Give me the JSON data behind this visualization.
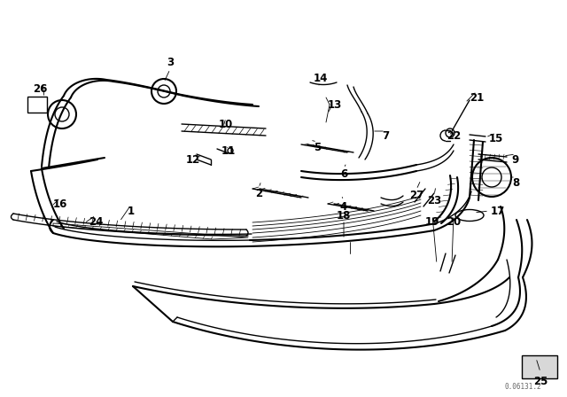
{
  "bg_color": "#ffffff",
  "line_color": "#000000",
  "fig_width": 6.4,
  "fig_height": 4.48,
  "dpi": 100,
  "watermark": "0.06131.2"
}
